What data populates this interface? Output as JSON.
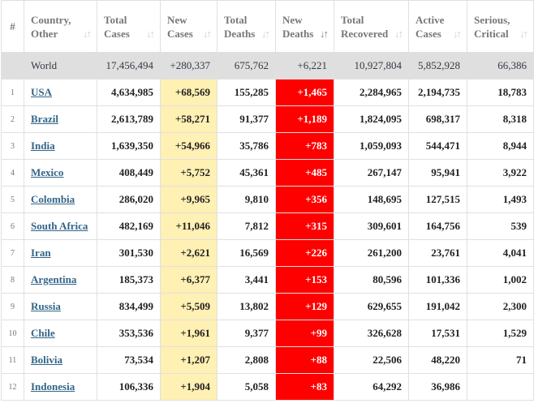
{
  "colors": {
    "new_cases_bg": "#fff0b3",
    "new_deaths_bg": "#ff0000",
    "link": "#326589",
    "world_row_bg": "#dfdfdf"
  },
  "headers": {
    "num": "#",
    "country": [
      "Country,",
      "Other"
    ],
    "total_cases": [
      "Total",
      "Cases"
    ],
    "new_cases": [
      "New",
      "Cases"
    ],
    "total_deaths": [
      "Total",
      "Deaths"
    ],
    "new_deaths": [
      "New",
      "Deaths"
    ],
    "total_recovered": [
      "Total",
      "Recovered"
    ],
    "active_cases": [
      "Active",
      "Cases"
    ],
    "serious": [
      "Serious,",
      "Critical"
    ],
    "sort_icon": "↓↑"
  },
  "world": {
    "country": "World",
    "total_cases": "17,456,494",
    "new_cases": "+280,337",
    "total_deaths": "675,762",
    "new_deaths": "+6,221",
    "total_recovered": "10,927,804",
    "active_cases": "5,852,928",
    "serious": "66,386"
  },
  "rows": [
    {
      "idx": "1",
      "country": "USA",
      "total_cases": "4,634,985",
      "new_cases": "+68,569",
      "total_deaths": "155,285",
      "new_deaths": "+1,465",
      "total_recovered": "2,284,965",
      "active_cases": "2,194,735",
      "serious": "18,783"
    },
    {
      "idx": "2",
      "country": "Brazil",
      "total_cases": "2,613,789",
      "new_cases": "+58,271",
      "total_deaths": "91,377",
      "new_deaths": "+1,189",
      "total_recovered": "1,824,095",
      "active_cases": "698,317",
      "serious": "8,318"
    },
    {
      "idx": "3",
      "country": "India",
      "total_cases": "1,639,350",
      "new_cases": "+54,966",
      "total_deaths": "35,786",
      "new_deaths": "+783",
      "total_recovered": "1,059,093",
      "active_cases": "544,471",
      "serious": "8,944"
    },
    {
      "idx": "4",
      "country": "Mexico",
      "total_cases": "408,449",
      "new_cases": "+5,752",
      "total_deaths": "45,361",
      "new_deaths": "+485",
      "total_recovered": "267,147",
      "active_cases": "95,941",
      "serious": "3,922"
    },
    {
      "idx": "5",
      "country": "Colombia",
      "total_cases": "286,020",
      "new_cases": "+9,965",
      "total_deaths": "9,810",
      "new_deaths": "+356",
      "total_recovered": "148,695",
      "active_cases": "127,515",
      "serious": "1,493"
    },
    {
      "idx": "6",
      "country": "South Africa",
      "total_cases": "482,169",
      "new_cases": "+11,046",
      "total_deaths": "7,812",
      "new_deaths": "+315",
      "total_recovered": "309,601",
      "active_cases": "164,756",
      "serious": "539"
    },
    {
      "idx": "7",
      "country": "Iran",
      "total_cases": "301,530",
      "new_cases": "+2,621",
      "total_deaths": "16,569",
      "new_deaths": "+226",
      "total_recovered": "261,200",
      "active_cases": "23,761",
      "serious": "4,041"
    },
    {
      "idx": "8",
      "country": "Argentina",
      "total_cases": "185,373",
      "new_cases": "+6,377",
      "total_deaths": "3,441",
      "new_deaths": "+153",
      "total_recovered": "80,596",
      "active_cases": "101,336",
      "serious": "1,002"
    },
    {
      "idx": "9",
      "country": "Russia",
      "total_cases": "834,499",
      "new_cases": "+5,509",
      "total_deaths": "13,802",
      "new_deaths": "+129",
      "total_recovered": "629,655",
      "active_cases": "191,042",
      "serious": "2,300"
    },
    {
      "idx": "10",
      "country": "Chile",
      "total_cases": "353,536",
      "new_cases": "+1,961",
      "total_deaths": "9,377",
      "new_deaths": "+99",
      "total_recovered": "326,628",
      "active_cases": "17,531",
      "serious": "1,529"
    },
    {
      "idx": "11",
      "country": "Bolivia",
      "total_cases": "73,534",
      "new_cases": "+1,207",
      "total_deaths": "2,808",
      "new_deaths": "+88",
      "total_recovered": "22,506",
      "active_cases": "48,220",
      "serious": "71"
    },
    {
      "idx": "12",
      "country": "Indonesia",
      "total_cases": "106,336",
      "new_cases": "+1,904",
      "total_deaths": "5,058",
      "new_deaths": "+83",
      "total_recovered": "64,292",
      "active_cases": "36,986",
      "serious": ""
    }
  ]
}
